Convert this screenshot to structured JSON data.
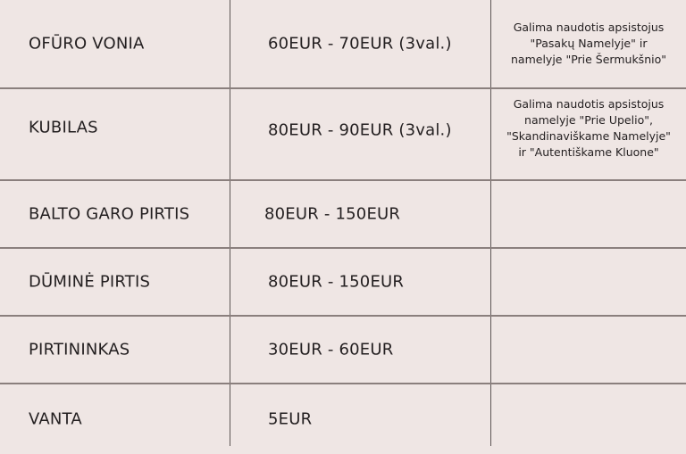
{
  "rows": [
    {
      "name": "OFŪRO VONIA",
      "price": "60EUR - 70EUR (3val.)",
      "note": [
        "Galima naudotis apsistojus",
        "\"Pasakų Namelyje\" ir",
        "namelyje \"Prie Šermukšnio\""
      ]
    },
    {
      "name": "KUBILAS",
      "price": "80EUR - 90EUR (3val.)",
      "note": [
        "Galima naudotis apsistojus",
        "namelyje \"Prie Upelio\",",
        "\"Skandinaviškame Namelyje\"",
        "ir \"Autentiškame Kluone\""
      ]
    },
    {
      "name": "BALTO GARO PIRTIS",
      "price": "80EUR - 150EUR",
      "note": []
    },
    {
      "name": "DŪMINĖ PIRTIS",
      "price": "80EUR - 150EUR",
      "note": []
    },
    {
      "name": "PIRTININKAS",
      "price": "30EUR - 60EUR",
      "note": []
    },
    {
      "name": "VANTA",
      "price": "5EUR",
      "note": []
    }
  ]
}
